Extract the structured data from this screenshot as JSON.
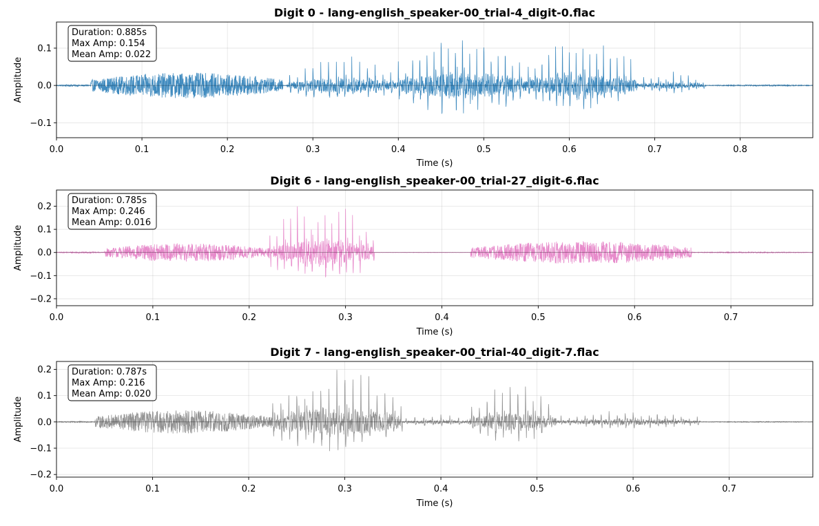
{
  "chart_data": [
    {
      "type": "line",
      "title": "Digit 0 - lang-english_speaker-00_trial-4_digit-0.flac",
      "xlabel": "Time (s)",
      "ylabel": "Amplitude",
      "xlim": [
        0,
        0.885
      ],
      "ylim": [
        -0.14,
        0.17
      ],
      "xticks": [
        0.0,
        0.1,
        0.2,
        0.3,
        0.4,
        0.5,
        0.6,
        0.7,
        0.8
      ],
      "xtick_labels": [
        "0.0",
        "0.1",
        "0.2",
        "0.3",
        "0.4",
        "0.5",
        "0.6",
        "0.7",
        "0.8"
      ],
      "yticks": [
        -0.1,
        0.0,
        0.1
      ],
      "ytick_labels": [
        "−0.1",
        "0.0",
        "0.1"
      ],
      "grid": true,
      "color": "#1f77b4",
      "stats": {
        "line1": "Duration: 0.885s",
        "line2": "Max Amp: 0.154",
        "line3": "Mean Amp: 0.022"
      },
      "segments": [
        {
          "t0": 0.0,
          "t1": 0.04,
          "amp": 0.003,
          "kind": "noise"
        },
        {
          "t0": 0.04,
          "t1": 0.265,
          "amp": 0.038,
          "kind": "noise"
        },
        {
          "t0": 0.27,
          "t1": 0.4,
          "amp": 0.075,
          "kind": "voiced",
          "f0": 110
        },
        {
          "t0": 0.4,
          "t1": 0.55,
          "amp": 0.135,
          "kind": "voiced",
          "f0": 120
        },
        {
          "t0": 0.55,
          "t1": 0.68,
          "amp": 0.12,
          "kind": "voiced",
          "f0": 125
        },
        {
          "t0": 0.68,
          "t1": 0.76,
          "amp": 0.035,
          "kind": "voiced",
          "f0": 115
        },
        {
          "t0": 0.76,
          "t1": 0.885,
          "amp": 0.002,
          "kind": "noise"
        }
      ]
    },
    {
      "type": "line",
      "title": "Digit 6 - lang-english_speaker-00_trial-27_digit-6.flac",
      "xlabel": "Time (s)",
      "ylabel": "Amplitude",
      "xlim": [
        0,
        0.785
      ],
      "ylim": [
        -0.23,
        0.27
      ],
      "xticks": [
        0.0,
        0.1,
        0.2,
        0.3,
        0.4,
        0.5,
        0.6,
        0.7
      ],
      "xtick_labels": [
        "0.0",
        "0.1",
        "0.2",
        "0.3",
        "0.4",
        "0.5",
        "0.6",
        "0.7"
      ],
      "yticks": [
        -0.2,
        -0.1,
        0.0,
        0.1,
        0.2
      ],
      "ytick_labels": [
        "−0.2",
        "−0.1",
        "0.0",
        "0.1",
        "0.2"
      ],
      "grid": true,
      "color": "#e377c2",
      "stats": {
        "line1": "Duration: 0.785s",
        "line2": "Max Amp: 0.246",
        "line3": "Mean Amp: 0.016"
      },
      "segments": [
        {
          "t0": 0.0,
          "t1": 0.05,
          "amp": 0.004,
          "kind": "noise"
        },
        {
          "t0": 0.05,
          "t1": 0.22,
          "amp": 0.045,
          "kind": "noise"
        },
        {
          "t0": 0.22,
          "t1": 0.33,
          "amp": 0.22,
          "kind": "voiced",
          "f0": 140
        },
        {
          "t0": 0.33,
          "t1": 0.43,
          "amp": 0.001,
          "kind": "noise"
        },
        {
          "t0": 0.43,
          "t1": 0.66,
          "amp": 0.055,
          "kind": "noise"
        },
        {
          "t0": 0.66,
          "t1": 0.785,
          "amp": 0.003,
          "kind": "noise"
        }
      ]
    },
    {
      "type": "line",
      "title": "Digit 7 - lang-english_speaker-00_trial-40_digit-7.flac",
      "xlabel": "Time (s)",
      "ylabel": "Amplitude",
      "xlim": [
        0,
        0.787
      ],
      "ylim": [
        -0.21,
        0.23
      ],
      "xticks": [
        0.0,
        0.1,
        0.2,
        0.3,
        0.4,
        0.5,
        0.6,
        0.7
      ],
      "xtick_labels": [
        "0.0",
        "0.1",
        "0.2",
        "0.3",
        "0.4",
        "0.5",
        "0.6",
        "0.7"
      ],
      "yticks": [
        -0.2,
        -0.1,
        0.0,
        0.1,
        0.2
      ],
      "ytick_labels": [
        "−0.2",
        "−0.1",
        "0.0",
        "0.1",
        "0.2"
      ],
      "grid": true,
      "color": "#7f7f7f",
      "stats": {
        "line1": "Duration: 0.787s",
        "line2": "Max Amp: 0.216",
        "line3": "Mean Amp: 0.020"
      },
      "segments": [
        {
          "t0": 0.0,
          "t1": 0.04,
          "amp": 0.003,
          "kind": "noise"
        },
        {
          "t0": 0.04,
          "t1": 0.22,
          "amp": 0.05,
          "kind": "noise"
        },
        {
          "t0": 0.22,
          "t1": 0.36,
          "amp": 0.2,
          "kind": "voiced",
          "f0": 120
        },
        {
          "t0": 0.36,
          "t1": 0.43,
          "amp": 0.03,
          "kind": "voiced",
          "f0": 110
        },
        {
          "t0": 0.43,
          "t1": 0.52,
          "amp": 0.13,
          "kind": "voiced",
          "f0": 125
        },
        {
          "t0": 0.52,
          "t1": 0.67,
          "amp": 0.045,
          "kind": "voiced",
          "f0": 120
        },
        {
          "t0": 0.67,
          "t1": 0.787,
          "amp": 0.002,
          "kind": "noise"
        }
      ]
    }
  ]
}
